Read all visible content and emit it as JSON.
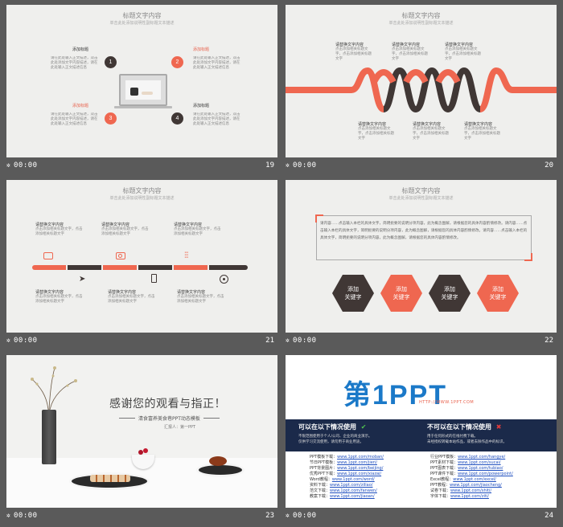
{
  "footer_time": "00:00",
  "slides": {
    "s19": {
      "number": "19",
      "title": "标题文字内容",
      "subtitle": "单击此处添加说明性副标题文本描述",
      "items": [
        {
          "num": "1",
          "label": "添加标题",
          "text": "请在此处输入正文描述，双击此处添加文字内容描述，请在此处输入正文描述信息"
        },
        {
          "num": "2",
          "label": "添加标题",
          "text": "请在此处输入正文描述，双击此处添加文字内容描述，请在此处输入正文描述信息"
        },
        {
          "num": "3",
          "label": "添加标题",
          "text": "请在此处输入正文描述，双击此处添加文字内容描述，请在此处输入正文描述信息"
        },
        {
          "num": "4",
          "label": "添加标题",
          "text": "请在此处输入正文描述，双击此处添加文字内容描述，请在此处输入正文描述信息"
        }
      ]
    },
    "s20": {
      "number": "20",
      "title": "标题文字内容",
      "subtitle": "单击此处添加说明性副标题文本描述",
      "top_labels": [
        "请替换文字内容",
        "请替换文字内容",
        "请替换文字内容"
      ],
      "bottom_labels": [
        "请替换文字内容",
        "请替换文字内容",
        "请替换文字内容"
      ],
      "text": "点击添加相关标题文字，点击添加相关标题文字"
    },
    "s21": {
      "number": "21",
      "title": "标题文字内容",
      "subtitle": "单击此处添加说明性副标题文本描述",
      "top_labels": [
        "请替换文字内容",
        "请替换文字内容",
        "请替换文字内容"
      ],
      "bottom_labels": [
        "请替换文字内容",
        "请替换文字内容",
        "请替换文字内容"
      ],
      "text": "点击添加相关标题文字，点击添加相关标题文字"
    },
    "s22": {
      "number": "22",
      "title": "标题文字内容",
      "subtitle": "单击此处添加说明性副标题文本描述",
      "body": "请内容……点击输入本栏的具体文字，简明扼要的说明分项内容，此为概念图解，请根据您的具体内容酌情修改。请内容……点击输入本栏的具体文字，简明扼要的说明分项内容，此为概念图解，请根据您的具体内容酌情修改。请内容……点击输入本栏的具体文字，简明扼要的说明分项内容，此为概念图解，请根据您的具体内容酌情修改。",
      "hexes": [
        {
          "l1": "添加",
          "l2": "关键字"
        },
        {
          "l1": "添加",
          "l2": "关键字"
        },
        {
          "l1": "添加",
          "l2": "关键字"
        },
        {
          "l1": "添加",
          "l2": "关键字"
        }
      ]
    },
    "s23": {
      "number": "23",
      "heading": "感谢您的观看与指正！",
      "tagline": "清食富养美食巷PPT动态模板",
      "reporter": "汇报人：第一PPT"
    },
    "s24": {
      "number": "24",
      "logo_main": "第1PPT",
      "logo_url": "HTTP://WWW.1PPT.COM",
      "can_title": "可以在以下情况使用",
      "cannot_title": "不可以在以下情况使用",
      "can_notes": [
        "不限范围使用于个人/公司、企业的商业演示。",
        "仅供学习交流使用，请勿用于商业用途。"
      ],
      "cannot_notes": [
        "用于任何形式的在线付费下载。",
        "未经授权转载本站作品，或者去除作品中的标识。"
      ],
      "left_links": [
        {
          "name": "PPT模板下载：",
          "url": "www.1ppt.com/moban/"
        },
        {
          "name": "节日PPT模板：",
          "url": "www.1ppt.com/jieri/"
        },
        {
          "name": "PPT背景图片：",
          "url": "www.1ppt.com/beijing/"
        },
        {
          "name": "优秀PPT下载：",
          "url": "www.1ppt.com/xiazai/"
        },
        {
          "name": "Word教程：",
          "url": "www.1ppt.com/word/"
        },
        {
          "name": "资料下载：",
          "url": "www.1ppt.com/ziliao/"
        },
        {
          "name": "范文下载：",
          "url": "www.1ppt.com/fanwen/"
        },
        {
          "name": "教案下载：",
          "url": "www.1ppt.com/jiaoan/"
        }
      ],
      "right_links": [
        {
          "name": "行业PPT模板：",
          "url": "www.1ppt.com/hangye/"
        },
        {
          "name": "PPT素材下载：",
          "url": "www.1ppt.com/sucai/"
        },
        {
          "name": "PPT图表下载：",
          "url": "www.1ppt.com/tubiao/"
        },
        {
          "name": "PPT课件下载：",
          "url": "www.1ppt.com/powerpoint/"
        },
        {
          "name": "Excel教程：",
          "url": "www.1ppt.com/excel/"
        },
        {
          "name": "PPT教程：",
          "url": "www.1ppt.com/jiaocheng/"
        },
        {
          "name": "试卷下载：",
          "url": "www.1ppt.com/shiti/"
        },
        {
          "name": "字体下载：",
          "url": "www.1ppt.com/ziti/"
        }
      ]
    }
  },
  "colors": {
    "accent": "#ef6750",
    "dark": "#403735",
    "bg": "#5a5a5a",
    "slide_bg": "#efefed",
    "navy": "#1b2a4a",
    "logo_blue": "#1b79c8"
  }
}
